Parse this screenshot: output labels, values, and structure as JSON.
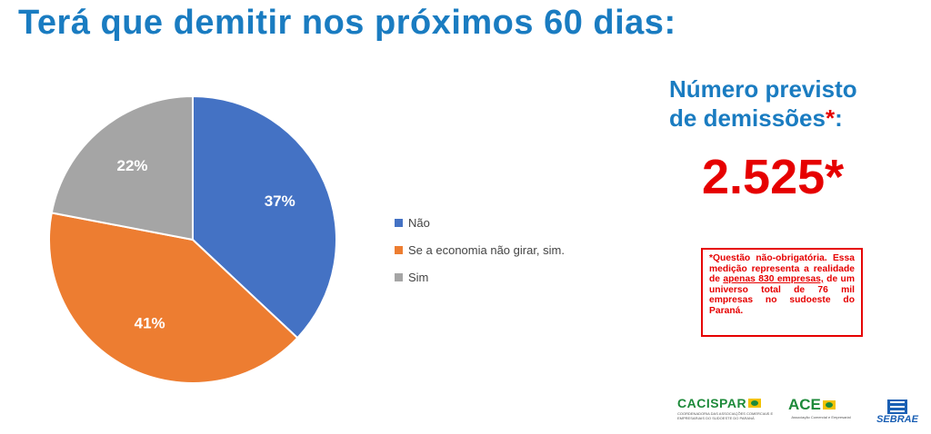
{
  "title": "Terá que demitir nos próximos 60 dias:",
  "chart_data": {
    "type": "pie",
    "title": "",
    "slices": [
      {
        "label": "Não",
        "value": 37,
        "display": "37%",
        "color": "#4472c4"
      },
      {
        "label": "Se a economia não girar, sim.",
        "value": 41,
        "display": "41%",
        "color": "#ed7d31"
      },
      {
        "label": "Sim",
        "value": 22,
        "display": "22%",
        "color": "#a5a5a5"
      }
    ],
    "legend_position": "right"
  },
  "kpi": {
    "label_line1": "Número previsto",
    "label_line2": "de demissões",
    "asterisk": "*",
    "label_colon": ":",
    "value": "2.525*"
  },
  "note": {
    "text_before": "*Questão não-obrigatória. Essa medição representa a realidade de ",
    "underlined": "apenas 830 empresas,",
    "text_after": " de um universo total de 76 mil empresas no sudoeste do Paraná."
  },
  "logos": {
    "cacispar": {
      "name": "CACISPAR",
      "sub": "COORDENADORIA DAS ASSOCIAÇÕES COMERCIAIS E EMPRESARIAIS DO SUDOESTE DO PARANÁ"
    },
    "ace": {
      "name": "ACE",
      "sub": "Associação Comercial e Empresarial"
    },
    "sebrae": {
      "name": "SEBRAE"
    }
  }
}
